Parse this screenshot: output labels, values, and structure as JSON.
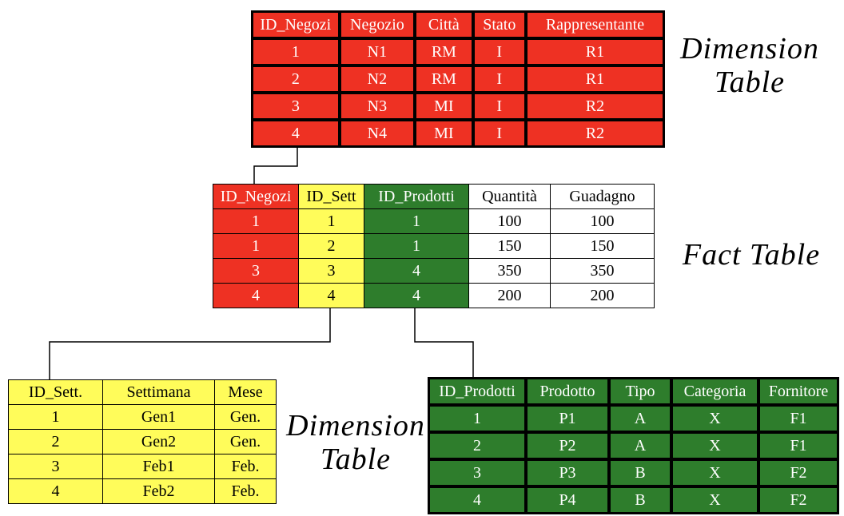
{
  "labels": {
    "top_dimension": [
      "Dimension",
      "Table"
    ],
    "fact": "Fact Table",
    "bottom_dimension": [
      "Dimension",
      "Table"
    ]
  },
  "colors": {
    "red": "#ee3123",
    "yellow": "#fffc5a",
    "green": "#2e7d2c",
    "white": "#ffffff"
  },
  "negozi_table": {
    "headers": [
      "ID_Negozi",
      "Negozio",
      "Città",
      "Stato",
      "Rappresentante"
    ],
    "rows": [
      [
        "1",
        "N1",
        "RM",
        "I",
        "R1"
      ],
      [
        "2",
        "N2",
        "RM",
        "I",
        "R1"
      ],
      [
        "3",
        "N3",
        "MI",
        "I",
        "R2"
      ],
      [
        "4",
        "N4",
        "MI",
        "I",
        "R2"
      ]
    ]
  },
  "fact_table": {
    "headers": [
      "ID_Negozi",
      "ID_Sett",
      "ID_Prodotti",
      "Quantità",
      "Guadagno"
    ],
    "rows": [
      [
        "1",
        "1",
        "1",
        "100",
        "100"
      ],
      [
        "1",
        "2",
        "1",
        "150",
        "150"
      ],
      [
        "3",
        "3",
        "4",
        "350",
        "350"
      ],
      [
        "4",
        "4",
        "4",
        "200",
        "200"
      ]
    ]
  },
  "settimane_table": {
    "headers": [
      "ID_Sett.",
      "Settimana",
      "Mese"
    ],
    "rows": [
      [
        "1",
        "Gen1",
        "Gen."
      ],
      [
        "2",
        "Gen2",
        "Gen."
      ],
      [
        "3",
        "Feb1",
        "Feb."
      ],
      [
        "4",
        "Feb2",
        "Feb."
      ]
    ]
  },
  "prodotti_table": {
    "headers": [
      "ID_Prodotti",
      "Prodotto",
      "Tipo",
      "Categoria",
      "Fornitore"
    ],
    "rows": [
      [
        "1",
        "P1",
        "A",
        "X",
        "F1"
      ],
      [
        "2",
        "P2",
        "A",
        "X",
        "F1"
      ],
      [
        "3",
        "P3",
        "B",
        "X",
        "F2"
      ],
      [
        "4",
        "P4",
        "B",
        "X",
        "F2"
      ]
    ]
  }
}
